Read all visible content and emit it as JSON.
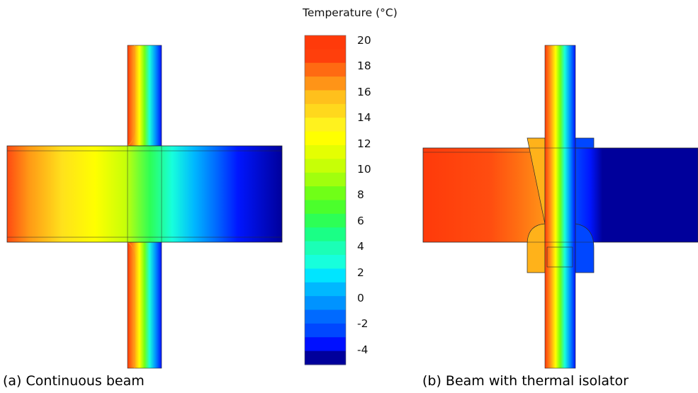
{
  "legend": {
    "title": "Temperature (°C)",
    "ticks": [
      "20",
      "18",
      "16",
      "14",
      "12",
      "10",
      "8",
      "6",
      "4",
      "2",
      "0",
      "-2",
      "-4"
    ],
    "bands": [
      "#FF3A0A",
      "#FF3F0C",
      "#FF6A12",
      "#FF9417",
      "#FFC01C",
      "#FFD81D",
      "#FFF21E",
      "#FFFF00",
      "#E4FF02",
      "#C7FF06",
      "#A1FF0D",
      "#70FF17",
      "#4BFF2C",
      "#2DFF56",
      "#1AFF86",
      "#1BFFB6",
      "#17FFDC",
      "#00E5FF",
      "#00B8FF",
      "#0093FF",
      "#006AFF",
      "#0047FF",
      "#0010FF",
      "#00009B"
    ]
  },
  "captions": {
    "a": "(a) Continuous beam",
    "b": "(b) Beam with thermal isolator"
  },
  "palette": {
    "outline": "#2a2a2a",
    "beam_a_stops": [
      "#FF4A12",
      "#FF9915",
      "#FFE11C",
      "#FFFF00",
      "#C7FF08",
      "#2DFF56",
      "#17FFDC",
      "#00B8FF",
      "#006AFF",
      "#0016FF",
      "#00009B"
    ],
    "beam_b_left": "#FF3A0A",
    "beam_b_right": "#00009B",
    "wall_stops": [
      "#FF3A0A",
      "#FF9417",
      "#FFFF00",
      "#70FF17",
      "#17FFDC",
      "#0093FF",
      "#0010FF"
    ]
  }
}
